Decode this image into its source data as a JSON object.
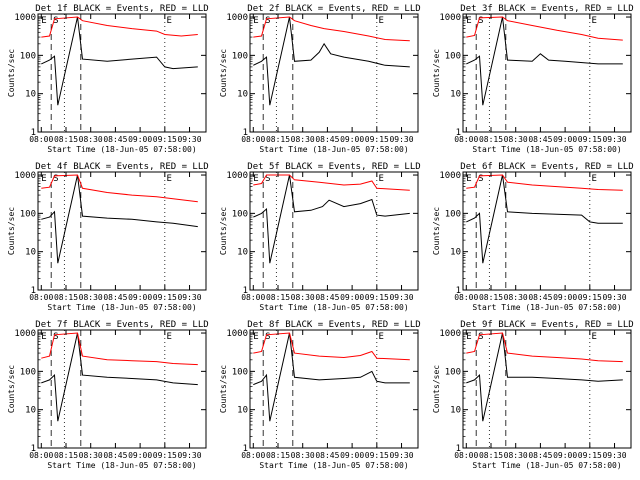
{
  "figure": {
    "start_time_label": "Start Time (18-Jun-05 07:58:00)",
    "ylabel": "Counts/sec",
    "x_tick_labels": [
      "08:00",
      "08:15",
      "08:30",
      "08:45",
      "09:00",
      "09:15",
      "09:30"
    ],
    "y_tick_labels": [
      "1",
      "10",
      "100",
      "1000"
    ],
    "marker_labels": {
      "E": "E",
      "S": "S"
    },
    "colors": {
      "events": "#000000",
      "lld": "#ff0000",
      "axes": "#000000"
    }
  },
  "chart_data": [
    {
      "type": "line",
      "title": "Det 1f BLACK = Events, RED = LLD",
      "xlabel": "Start Time (18-Jun-05 07:58:00)",
      "ylabel": "Counts/sec",
      "y_scale": "log",
      "ylim": [
        1,
        1000
      ],
      "x_ticks": [
        "08:00",
        "08:15",
        "08:30",
        "08:45",
        "09:00",
        "09:15",
        "09:30"
      ],
      "series": [
        {
          "name": "Events",
          "color": "#000000",
          "x": [
            "08:00",
            "08:05",
            "08:08",
            "08:10",
            "08:22",
            "08:25",
            "08:40",
            "08:55",
            "09:10",
            "09:15",
            "09:20",
            "09:35"
          ],
          "y": [
            60,
            75,
            95,
            5,
            1000,
            80,
            70,
            80,
            90,
            50,
            45,
            50
          ]
        },
        {
          "name": "LLD",
          "color": "#ff0000",
          "x": [
            "08:00",
            "08:05",
            "08:08",
            "08:22",
            "08:25",
            "08:40",
            "08:55",
            "09:10",
            "09:15",
            "09:25",
            "09:35"
          ],
          "y": [
            300,
            320,
            900,
            1000,
            800,
            600,
            500,
            430,
            350,
            320,
            350
          ]
        }
      ]
    },
    {
      "type": "line",
      "title": "Det 2f BLACK = Events, RED = LLD",
      "xlabel": "Start Time (18-Jun-05 07:58:00)",
      "ylabel": "Counts/sec",
      "y_scale": "log",
      "ylim": [
        1,
        1000
      ],
      "x_ticks": [
        "08:00",
        "08:15",
        "08:30",
        "08:45",
        "09:00",
        "09:15",
        "09:30"
      ],
      "series": [
        {
          "name": "Events",
          "color": "#000000",
          "x": [
            "08:00",
            "08:05",
            "08:08",
            "08:10",
            "08:22",
            "08:25",
            "08:35",
            "08:40",
            "08:43",
            "08:47",
            "08:55",
            "09:10",
            "09:20",
            "09:35"
          ],
          "y": [
            55,
            70,
            90,
            5,
            1000,
            70,
            75,
            120,
            200,
            110,
            90,
            70,
            55,
            50
          ]
        },
        {
          "name": "LLD",
          "color": "#ff0000",
          "x": [
            "08:00",
            "08:05",
            "08:08",
            "08:22",
            "08:25",
            "08:35",
            "08:43",
            "08:55",
            "09:10",
            "09:20",
            "09:35"
          ],
          "y": [
            300,
            320,
            900,
            1000,
            800,
            600,
            500,
            420,
            320,
            260,
            240
          ]
        }
      ]
    },
    {
      "type": "line",
      "title": "Det 3f BLACK = Events, RED = LLD",
      "xlabel": "Start Time (18-Jun-05 07:58:00)",
      "ylabel": "Counts/sec",
      "y_scale": "log",
      "ylim": [
        1,
        1000
      ],
      "x_ticks": [
        "08:00",
        "08:15",
        "08:30",
        "08:45",
        "09:00",
        "09:15",
        "09:30"
      ],
      "series": [
        {
          "name": "Events",
          "color": "#000000",
          "x": [
            "08:00",
            "08:05",
            "08:08",
            "08:10",
            "08:22",
            "08:25",
            "08:40",
            "08:45",
            "08:50",
            "09:00",
            "09:20",
            "09:35"
          ],
          "y": [
            60,
            75,
            95,
            5,
            1000,
            75,
            70,
            110,
            75,
            70,
            60,
            60
          ]
        },
        {
          "name": "LLD",
          "color": "#ff0000",
          "x": [
            "08:00",
            "08:05",
            "08:08",
            "08:22",
            "08:25",
            "08:40",
            "08:55",
            "09:10",
            "09:20",
            "09:35"
          ],
          "y": [
            300,
            330,
            950,
            1000,
            800,
            600,
            450,
            350,
            280,
            250
          ]
        }
      ]
    },
    {
      "type": "line",
      "title": "Det 4f BLACK = Events, RED = LLD",
      "xlabel": "Start Time (18-Jun-05 07:58:00)",
      "ylabel": "Counts/sec",
      "y_scale": "log",
      "ylim": [
        1,
        1000
      ],
      "x_ticks": [
        "08:00",
        "08:15",
        "08:30",
        "08:45",
        "09:00",
        "09:15",
        "09:30"
      ],
      "series": [
        {
          "name": "Events",
          "color": "#000000",
          "x": [
            "08:00",
            "08:05",
            "08:08",
            "08:10",
            "08:22",
            "08:25",
            "08:40",
            "08:55",
            "09:10",
            "09:20",
            "09:35"
          ],
          "y": [
            70,
            80,
            110,
            5,
            1000,
            85,
            75,
            70,
            60,
            55,
            45
          ]
        },
        {
          "name": "LLD",
          "color": "#ff0000",
          "x": [
            "08:00",
            "08:05",
            "08:08",
            "08:22",
            "08:25",
            "08:40",
            "08:55",
            "09:10",
            "09:20",
            "09:35"
          ],
          "y": [
            450,
            480,
            950,
            1000,
            450,
            350,
            300,
            270,
            240,
            200
          ]
        }
      ]
    },
    {
      "type": "line",
      "title": "Det 5f BLACK = Events, RED = LLD",
      "xlabel": "Start Time (18-Jun-05 07:58:00)",
      "ylabel": "Counts/sec",
      "y_scale": "log",
      "ylim": [
        1,
        1000
      ],
      "x_ticks": [
        "08:00",
        "08:15",
        "08:30",
        "08:45",
        "09:00",
        "09:15",
        "09:30"
      ],
      "series": [
        {
          "name": "Events",
          "color": "#000000",
          "x": [
            "08:00",
            "08:05",
            "08:08",
            "08:10",
            "08:22",
            "08:25",
            "08:35",
            "08:42",
            "08:46",
            "08:55",
            "09:05",
            "09:12",
            "09:15",
            "09:20",
            "09:35"
          ],
          "y": [
            80,
            100,
            130,
            5,
            1000,
            110,
            120,
            150,
            220,
            150,
            180,
            230,
            90,
            85,
            100
          ]
        },
        {
          "name": "LLD",
          "color": "#ff0000",
          "x": [
            "08:00",
            "08:05",
            "08:08",
            "08:22",
            "08:25",
            "08:40",
            "08:55",
            "09:05",
            "09:12",
            "09:15",
            "09:35"
          ],
          "y": [
            550,
            600,
            1000,
            1000,
            750,
            650,
            550,
            580,
            700,
            450,
            400
          ]
        }
      ]
    },
    {
      "type": "line",
      "title": "Det 6f BLACK = Events, RED = LLD",
      "xlabel": "Start Time (18-Jun-05 07:58:00)",
      "ylabel": "Counts/sec",
      "y_scale": "log",
      "ylim": [
        1,
        1000
      ],
      "x_ticks": [
        "08:00",
        "08:15",
        "08:30",
        "08:45",
        "09:00",
        "09:15",
        "09:30"
      ],
      "series": [
        {
          "name": "Events",
          "color": "#000000",
          "x": [
            "08:00",
            "08:05",
            "08:08",
            "08:10",
            "08:22",
            "08:25",
            "08:40",
            "08:55",
            "09:10",
            "09:15",
            "09:20",
            "09:35"
          ],
          "y": [
            60,
            75,
            100,
            5,
            1000,
            110,
            100,
            95,
            90,
            60,
            55,
            55
          ]
        },
        {
          "name": "LLD",
          "color": "#ff0000",
          "x": [
            "08:00",
            "08:05",
            "08:08",
            "08:22",
            "08:25",
            "08:40",
            "08:55",
            "09:10",
            "09:20",
            "09:35"
          ],
          "y": [
            450,
            480,
            950,
            1000,
            650,
            550,
            500,
            450,
            420,
            400
          ]
        }
      ]
    },
    {
      "type": "line",
      "title": "Det 7f BLACK = Events, RED = LLD",
      "xlabel": "Start Time (18-Jun-05 07:58:00)",
      "ylabel": "Counts/sec",
      "y_scale": "log",
      "ylim": [
        1,
        1000
      ],
      "x_ticks": [
        "08:00",
        "08:15",
        "08:30",
        "08:45",
        "09:00",
        "09:15",
        "09:30"
      ],
      "series": [
        {
          "name": "Events",
          "color": "#000000",
          "x": [
            "08:00",
            "08:05",
            "08:08",
            "08:10",
            "08:22",
            "08:25",
            "08:40",
            "08:55",
            "09:10",
            "09:20",
            "09:35"
          ],
          "y": [
            50,
            60,
            80,
            5,
            1000,
            80,
            70,
            65,
            60,
            50,
            45
          ]
        },
        {
          "name": "LLD",
          "color": "#ff0000",
          "x": [
            "08:00",
            "08:05",
            "08:08",
            "08:22",
            "08:25",
            "08:40",
            "08:55",
            "09:10",
            "09:20",
            "09:35"
          ],
          "y": [
            220,
            250,
            900,
            1000,
            250,
            200,
            190,
            180,
            160,
            150
          ]
        }
      ]
    },
    {
      "type": "line",
      "title": "Det 8f BLACK = Events, RED = LLD",
      "xlabel": "Start Time (18-Jun-05 07:58:00)",
      "ylabel": "Counts/sec",
      "y_scale": "log",
      "ylim": [
        1,
        1000
      ],
      "x_ticks": [
        "08:00",
        "08:15",
        "08:30",
        "08:45",
        "09:00",
        "09:15",
        "09:30"
      ],
      "series": [
        {
          "name": "Events",
          "color": "#000000",
          "x": [
            "08:00",
            "08:05",
            "08:08",
            "08:10",
            "08:22",
            "08:25",
            "08:40",
            "08:55",
            "09:05",
            "09:12",
            "09:15",
            "09:20",
            "09:35"
          ],
          "y": [
            45,
            55,
            80,
            5,
            1000,
            70,
            60,
            65,
            70,
            100,
            55,
            50,
            50
          ]
        },
        {
          "name": "LLD",
          "color": "#ff0000",
          "x": [
            "08:00",
            "08:05",
            "08:08",
            "08:22",
            "08:25",
            "08:40",
            "08:55",
            "09:05",
            "09:12",
            "09:15",
            "09:35"
          ],
          "y": [
            300,
            330,
            900,
            1000,
            300,
            250,
            230,
            260,
            330,
            220,
            200
          ]
        }
      ]
    },
    {
      "type": "line",
      "title": "Det 9f BLACK = Events, RED = LLD",
      "xlabel": "Start Time (18-Jun-05 07:58:00)",
      "ylabel": "Counts/sec",
      "y_scale": "log",
      "ylim": [
        1,
        1000
      ],
      "x_ticks": [
        "08:00",
        "08:15",
        "08:30",
        "08:45",
        "09:00",
        "09:15",
        "09:30"
      ],
      "series": [
        {
          "name": "Events",
          "color": "#000000",
          "x": [
            "08:00",
            "08:05",
            "08:08",
            "08:10",
            "08:22",
            "08:25",
            "08:40",
            "08:55",
            "09:10",
            "09:20",
            "09:35"
          ],
          "y": [
            50,
            60,
            80,
            5,
            1000,
            70,
            70,
            65,
            60,
            55,
            60
          ]
        },
        {
          "name": "LLD",
          "color": "#ff0000",
          "x": [
            "08:00",
            "08:05",
            "08:08",
            "08:22",
            "08:25",
            "08:40",
            "08:55",
            "09:10",
            "09:20",
            "09:35"
          ],
          "y": [
            300,
            330,
            900,
            1000,
            300,
            250,
            230,
            210,
            190,
            180
          ]
        }
      ]
    }
  ]
}
